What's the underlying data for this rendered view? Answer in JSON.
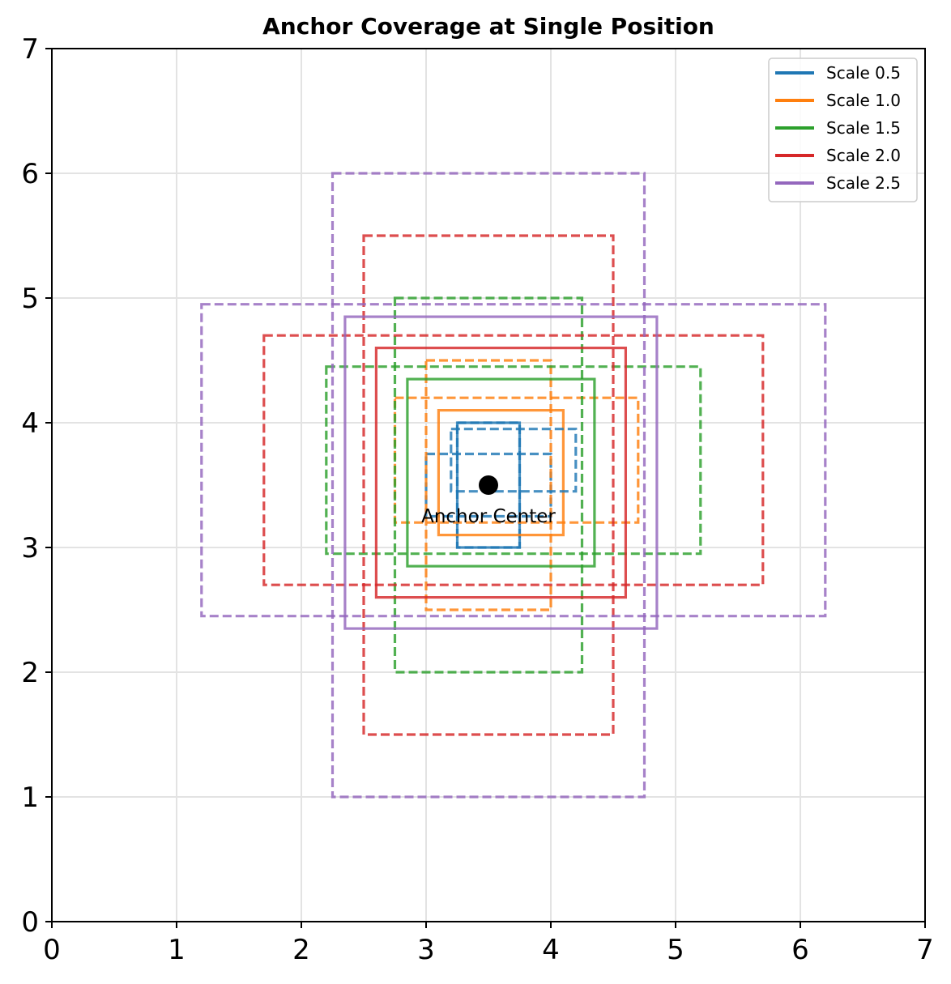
{
  "chart_data": {
    "type": "anchor_boxes",
    "title": "Anchor Coverage at Single Position",
    "xlabel": "",
    "ylabel": "",
    "xlim": [
      0,
      7
    ],
    "ylim": [
      0,
      7
    ],
    "x_ticks": [
      0,
      1,
      2,
      3,
      4,
      5,
      6,
      7
    ],
    "y_ticks": [
      0,
      1,
      2,
      3,
      4,
      5,
      6,
      7
    ],
    "grid": true,
    "legend_position": "top-right",
    "center": {
      "x": 3.5,
      "y": 3.5,
      "label": "Anchor Center"
    },
    "base_size": 0.5,
    "aspect_ratios": [
      0.5,
      1.0,
      2.0
    ],
    "ratio_styles": {
      "0.5": "dashed",
      "1.0": "solid",
      "2.0": "dashed"
    },
    "series": [
      {
        "name": "Scale 0.5",
        "scale": 0.5,
        "color": "#1f77b4",
        "boxes": [
          {
            "ratio": 0.5,
            "x0": 3.0,
            "y0": 3.25,
            "x1": 4.0,
            "y1": 3.75,
            "style": "dashed"
          },
          {
            "ratio": 1.0,
            "x0": 3.25,
            "y0": 3.0,
            "x1": 3.75,
            "y1": 4.0,
            "style": "solid"
          },
          {
            "ratio": 2.0,
            "x0": 3.25,
            "y0": 3.0,
            "x1": 3.75,
            "y1": 4.0,
            "style": "dashed"
          }
        ]
      },
      {
        "name": "Scale 1.0",
        "scale": 1.0,
        "color": "#ff7f0e",
        "boxes": [
          {
            "ratio": 0.5,
            "x0": 2.75,
            "y0": 3.2,
            "x1": 4.7,
            "y1": 4.2,
            "style": "dashed"
          },
          {
            "ratio": 1.0,
            "x0": 3.1,
            "y0": 3.1,
            "x1": 4.1,
            "y1": 4.1,
            "style": "solid"
          },
          {
            "ratio": 2.0,
            "x0": 3.0,
            "y0": 2.5,
            "x1": 4.0,
            "y1": 4.5,
            "style": "dashed"
          }
        ]
      },
      {
        "name": "Scale 1.5",
        "scale": 1.5,
        "color": "#2ca02c",
        "boxes": [
          {
            "ratio": 0.5,
            "x0": 2.2,
            "y0": 2.95,
            "x1": 5.2,
            "y1": 4.45,
            "style": "dashed"
          },
          {
            "ratio": 1.0,
            "x0": 2.85,
            "y0": 2.85,
            "x1": 4.35,
            "y1": 4.35,
            "style": "solid"
          },
          {
            "ratio": 2.0,
            "x0": 2.75,
            "y0": 2.0,
            "x1": 4.25,
            "y1": 5.0,
            "style": "dashed"
          }
        ]
      },
      {
        "name": "Scale 2.0",
        "scale": 2.0,
        "color": "#d62728",
        "boxes": [
          {
            "ratio": 0.5,
            "x0": 1.7,
            "y0": 2.7,
            "x1": 5.7,
            "y1": 4.7,
            "style": "dashed"
          },
          {
            "ratio": 1.0,
            "x0": 2.6,
            "y0": 2.6,
            "x1": 4.6,
            "y1": 4.6,
            "style": "solid"
          },
          {
            "ratio": 2.0,
            "x0": 2.5,
            "y0": 1.5,
            "x1": 4.5,
            "y1": 5.5,
            "style": "dashed"
          }
        ]
      },
      {
        "name": "Scale 2.5",
        "scale": 2.5,
        "color": "#9467bd",
        "boxes": [
          {
            "ratio": 0.5,
            "x0": 1.2,
            "y0": 2.45,
            "x1": 6.2,
            "y1": 4.95,
            "style": "dashed"
          },
          {
            "ratio": 1.0,
            "x0": 2.35,
            "y0": 2.35,
            "x1": 4.85,
            "y1": 4.85,
            "style": "solid"
          },
          {
            "ratio": 2.0,
            "x0": 2.25,
            "y0": 1.0,
            "x1": 4.75,
            "y1": 6.0,
            "style": "dashed"
          }
        ]
      }
    ],
    "small_box_extra": {
      "ratio": 0.5,
      "x0": 3.2,
      "y0": 3.45,
      "x1": 4.2,
      "y1": 3.95,
      "color": "#1f77b4",
      "style": "dashed"
    }
  }
}
